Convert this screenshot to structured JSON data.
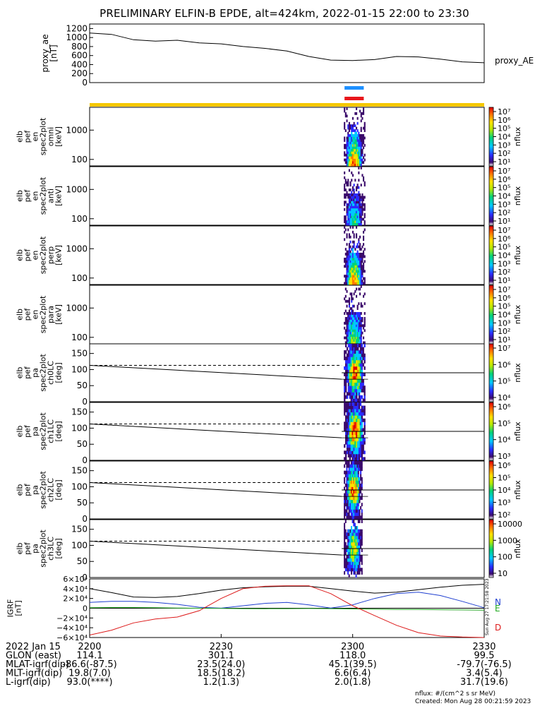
{
  "title": "PRELIMINARY ELFIN-B EPDE, alt=424km, 2022-01-15 22:00 to 23:30",
  "colors": {
    "bar_blue": "#1e90ff",
    "bar_red": "#e8161c",
    "bar_yellow": "#f5c800",
    "geo_n": "#1f3fd0",
    "geo_e": "#22aa22",
    "geo_d": "#dd1a1a"
  },
  "panels": {
    "ae": {
      "ylabel": "proxy_ae\n[nT]",
      "ticks": [
        "1200",
        "1000",
        "800",
        "600",
        "400",
        "200",
        "0"
      ],
      "right_label": "proxy_AE"
    },
    "spec": [
      {
        "ylabel": "elb\npef\nen\nspec2plot\nomni\n[keV]",
        "ticks": [
          "1000",
          "100"
        ],
        "cbar_label": "nflux",
        "cbar_ticks": [
          "10⁷",
          "10⁶",
          "10⁵",
          "10⁴",
          "10³",
          "10²",
          "10¹"
        ]
      },
      {
        "ylabel": "elb\npef\nen\nspec2plot\nanti\n[keV]",
        "ticks": [
          "1000",
          "100"
        ],
        "cbar_label": "nflux",
        "cbar_ticks": [
          "10⁷",
          "10⁶",
          "10⁵",
          "10⁴",
          "10³",
          "10²",
          "10¹"
        ]
      },
      {
        "ylabel": "elb\npef\nen\nspec2plot\nperp\n[keV]",
        "ticks": [
          "1000",
          "100"
        ],
        "cbar_label": "nflux",
        "cbar_ticks": [
          "10⁷",
          "10⁶",
          "10⁵",
          "10⁴",
          "10³",
          "10²",
          "10¹"
        ]
      },
      {
        "ylabel": "elb\npef\nen\nspec2plot\npara\n[keV]",
        "ticks": [
          "1000",
          "100"
        ],
        "cbar_label": "nflux",
        "cbar_ticks": [
          "10⁷",
          "10⁶",
          "10⁵",
          "10⁴",
          "10³",
          "10²",
          "10¹"
        ]
      }
    ],
    "pa": [
      {
        "ylabel": "elb\npef\npa\nspec2plot\nch0LC\n[deg]",
        "ticks": [
          "150",
          "100",
          "50",
          "0"
        ],
        "cbar_label": "nflux",
        "cbar_ticks": [
          "10⁷",
          "10⁶",
          "10⁵",
          "10⁴"
        ]
      },
      {
        "ylabel": "elb\npef\npa\nspec2plot\nch1LC\n[deg]",
        "ticks": [
          "150",
          "100",
          "50",
          "0"
        ],
        "cbar_label": "nflux",
        "cbar_ticks": [
          "10⁶",
          "10⁵",
          "10⁴",
          "10³"
        ]
      },
      {
        "ylabel": "elb\npef\npa\nspec2plot\nch2LC\n[deg]",
        "ticks": [
          "150",
          "100",
          "50",
          "0"
        ],
        "cbar_label": "nflux",
        "cbar_ticks": [
          "10⁶",
          "10⁵",
          "10⁴",
          "10³",
          "10²"
        ]
      },
      {
        "ylabel": "elb\npef\npa\nspec2plot\nch3LC\n[deg]",
        "ticks": [
          "150",
          "100",
          "50",
          "0"
        ],
        "cbar_label": "nflux",
        "cbar_ticks": [
          "10000",
          "1000",
          "100",
          "10"
        ]
      }
    ],
    "igrf": {
      "ylabel": "IGRF\n[nT]",
      "ticks": [
        "6×10⁴",
        "4×10⁴",
        "2×10⁴",
        "0",
        "−2×10⁴",
        "−4×10⁴",
        "−6×10⁴"
      ],
      "legend": [
        "N",
        "E",
        "D"
      ]
    }
  },
  "orbit_table": {
    "rows": [
      {
        "label": "2022 Jan 15",
        "values": [
          "2200",
          "2230",
          "2300",
          "2330"
        ]
      },
      {
        "label": "GLON (east)",
        "values": [
          "114.1",
          "301.1",
          "118.0",
          "99.5"
        ]
      },
      {
        "label": "MLAT-igrf(dip)",
        "values": [
          "-86.6(-87.5)",
          "23.5(24.0)",
          "45.1(39.5)",
          "-79.7(-76.5)"
        ]
      },
      {
        "label": "MLT-igrf(dip)",
        "values": [
          "19.8(7.0)",
          "18.5(18.2)",
          "6.6(6.4)",
          "3.4(5.4)"
        ]
      },
      {
        "label": "L-igrf(dip)",
        "values": [
          "93.0(****)",
          "1.2(1.3)",
          "2.0(1.8)",
          "31.7(19.6)"
        ]
      }
    ]
  },
  "footer": {
    "units": "nflux: #/(cm^2 s sr MeV)",
    "created": "Created: Mon Aug 28 00:21:59 2023",
    "side_stamp": "Sun Aug 27 17:21:58 2023"
  },
  "chart_data": {
    "type": "line",
    "title": "PRELIMINARY ELFIN-B EPDE, alt=424km, 2022-01-15 22:00 to 23:30",
    "x_ticks": [
      "2200",
      "2230",
      "2300",
      "2330"
    ],
    "x_range_min": [
      0,
      90
    ],
    "proxy_ae": {
      "x_min": [
        0,
        5,
        10,
        15,
        20,
        25,
        30,
        35,
        40,
        45,
        50,
        55,
        60,
        65,
        70,
        75,
        80,
        85,
        90
      ],
      "values": [
        1100,
        1070,
        950,
        920,
        940,
        880,
        860,
        800,
        760,
        700,
        580,
        500,
        490,
        510,
        580,
        570,
        520,
        460,
        440
      ],
      "ylim": [
        0,
        1300
      ]
    },
    "science_zone_min": [
      57.5,
      63.5
    ],
    "spectrogram_energy_range_keV": [
      60,
      6000
    ],
    "pitch_angle_range_deg": [
      0,
      180
    ],
    "loss_cone_start_deg": 113,
    "antiloss_end_deg": 70,
    "igrf": {
      "x_min": [
        0,
        5,
        10,
        15,
        20,
        25,
        30,
        35,
        40,
        45,
        50,
        55,
        60,
        65,
        70,
        75,
        80,
        85,
        90
      ],
      "series": [
        {
          "name": "N",
          "values": [
            12000,
            14000,
            14000,
            12000,
            8000,
            2000,
            100,
            5000,
            10000,
            12000,
            7000,
            300,
            7000,
            20000,
            30000,
            33000,
            26000,
            14000,
            1000
          ]
        },
        {
          "name": "E",
          "values": [
            1000,
            1500,
            1500,
            1000,
            500,
            0,
            -500,
            -800,
            -1000,
            -800,
            -600,
            -800,
            -1500,
            -2000,
            -2500,
            -2500,
            -3000,
            -3500,
            -4000
          ]
        },
        {
          "name": "D",
          "values": [
            -55000,
            -45000,
            -30000,
            -22000,
            -18000,
            -5000,
            20000,
            40000,
            45000,
            46000,
            46000,
            30000,
            5000,
            -15000,
            -35000,
            -50000,
            -57000,
            -59000,
            -60000
          ]
        }
      ],
      "total_field": [
        40000,
        32000,
        23000,
        22000,
        24000,
        30000,
        37000,
        42000,
        44000,
        45000,
        45000,
        40000,
        35000,
        31000,
        33000,
        38000,
        43000,
        47000,
        49000
      ],
      "ylim": [
        -60000,
        60000
      ]
    }
  }
}
